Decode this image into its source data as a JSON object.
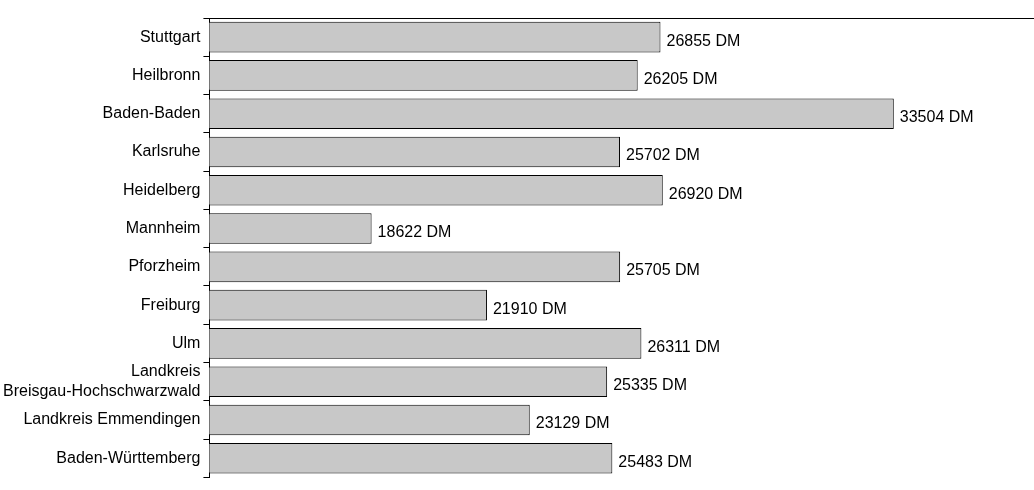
{
  "chart_data": {
    "type": "bar",
    "orientation": "horizontal",
    "categories": [
      "Stuttgart",
      "Heilbronn",
      "Baden-Baden",
      "Karlsruhe",
      "Heidelberg",
      "Mannheim",
      "Pforzheim",
      "Freiburg",
      "Ulm",
      "Landkreis\nBreisgau-Hochschwarzwald",
      "Landkreis Emmendingen",
      "Baden-Württemberg"
    ],
    "values": [
      26855,
      26205,
      33504,
      25702,
      26920,
      18622,
      25705,
      21910,
      26311,
      25335,
      23129,
      25483
    ],
    "value_labels": [
      "26855 DM",
      "26205 DM",
      "33504 DM",
      "25702 DM",
      "26920 DM",
      "18622 DM",
      "25705 DM",
      "21910 DM",
      "26311 DM",
      "25335 DM",
      "23129 DM",
      "25483 DM"
    ],
    "color": "#c8c8c8",
    "xlim": [
      14000,
      37500
    ],
    "tick_labels": "y",
    "grid": false,
    "legend": false
  }
}
